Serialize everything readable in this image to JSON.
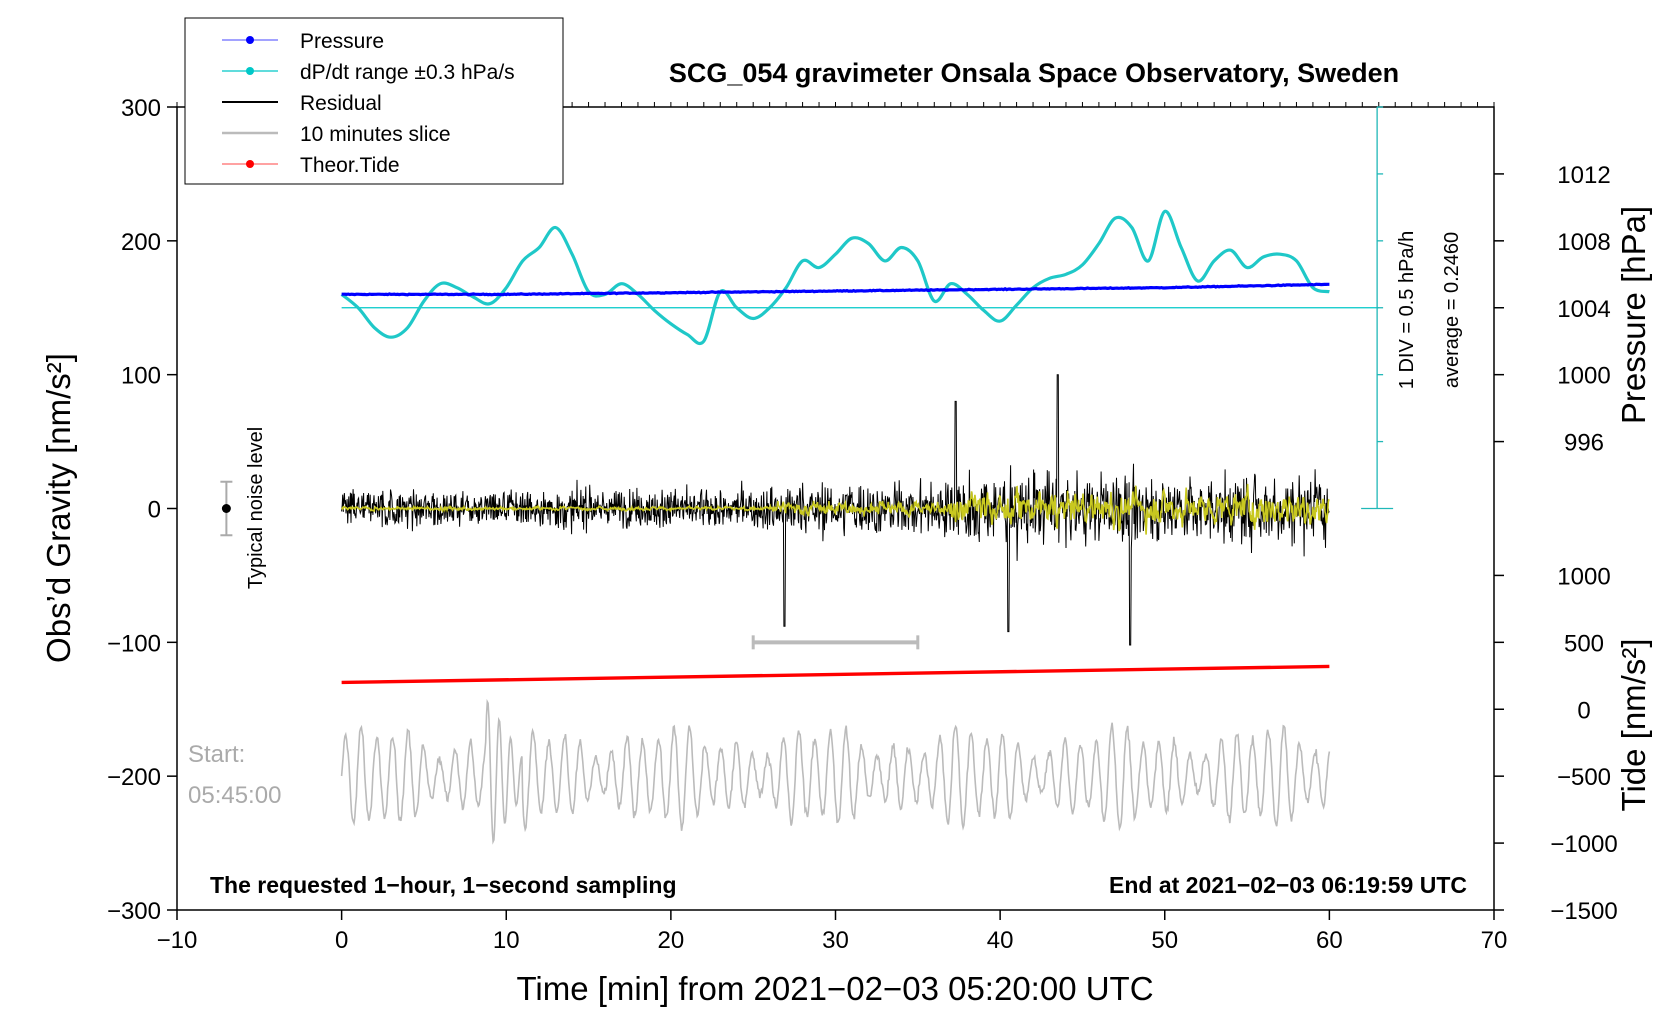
{
  "chart_data": {
    "type": "line",
    "title": "SCG_054 gravimeter Onsala Space Observatory, Sweden",
    "xlabel": "Time [min] from 2021−02−03 05:20:00 UTC",
    "ylabel_left": "Obs’d Gravity [nm/s²]",
    "ylabel_right_pressure": "Pressure [hPa]",
    "ylabel_right_tide": "Tide [nm/s²]",
    "xlim": [
      -10,
      70
    ],
    "ylim": [
      -300,
      300
    ],
    "x_ticks": [
      "−10",
      "0",
      "10",
      "20",
      "30",
      "40",
      "50",
      "60",
      "70"
    ],
    "y_ticks_left": [
      "300",
      "200",
      "100",
      "0",
      "−100",
      "−200",
      "−300"
    ],
    "y_ticks_pressure": [
      "1012",
      "1008",
      "1004",
      "1000",
      "996"
    ],
    "y_ticks_tide": [
      "1000",
      "500",
      "0",
      "−500",
      "−1000",
      "−1500"
    ],
    "legend": [
      {
        "label": "Pressure",
        "color": "#0000ff"
      },
      {
        "label": "dP/dt range ±0.3 hPa/s",
        "color": "#00c8c8"
      },
      {
        "label": "Residual",
        "color": "#000000"
      },
      {
        "label": "10 minutes slice",
        "color": "#bbbbbb"
      },
      {
        "label": "Theor.Tide",
        "color": "#ff0000"
      }
    ],
    "annotations": {
      "scale_div": "1 DIV = 0.5 hPa/h",
      "scale_avg": "average = 0.2460",
      "noise_label": "Typical noise level",
      "start_label": "Start:",
      "start_time": "05:45:00",
      "footer_left": "The requested 1−hour, 1−second sampling",
      "footer_right": "End at 2021−02−03 06:19:59 UTC"
    },
    "series": [
      {
        "name": "Pressure",
        "axis": "pressure_hPa",
        "x": [
          0,
          10,
          20,
          30,
          40,
          50,
          60
        ],
        "values": [
          1004.8,
          1004.8,
          1004.9,
          1005.0,
          1005.1,
          1005.2,
          1005.4
        ]
      },
      {
        "name": "dP/dt",
        "axis": "gravity_scale",
        "x": [
          0,
          1,
          2,
          3,
          4,
          5,
          6,
          7,
          8,
          9,
          10,
          11,
          12,
          13,
          14,
          15,
          16,
          17,
          18,
          19,
          20,
          21,
          22,
          23,
          24,
          25,
          26,
          27,
          28,
          29,
          30,
          31,
          32,
          33,
          34,
          35,
          36,
          37,
          38,
          39,
          40,
          41,
          42,
          43,
          44,
          45,
          46,
          47,
          48,
          49,
          50,
          51,
          52,
          53,
          54,
          55,
          56,
          57,
          58,
          59,
          60
        ],
        "values": [
          160,
          150,
          135,
          128,
          135,
          155,
          168,
          165,
          158,
          153,
          165,
          185,
          195,
          210,
          190,
          162,
          160,
          168,
          160,
          148,
          138,
          130,
          125,
          162,
          150,
          142,
          150,
          165,
          185,
          180,
          190,
          202,
          198,
          185,
          195,
          185,
          155,
          168,
          160,
          148,
          140,
          152,
          165,
          172,
          175,
          182,
          198,
          217,
          210,
          185,
          222,
          195,
          170,
          185,
          193,
          180,
          188,
          190,
          185,
          165,
          162
        ]
      },
      {
        "name": "Residual",
        "axis": "gravity",
        "x": [
          0,
          10,
          20,
          25,
          27,
          30,
          35,
          37,
          40,
          45,
          48,
          50,
          55,
          60
        ],
        "values": [
          0,
          0,
          0,
          0,
          -90,
          0,
          0,
          80,
          -90,
          100,
          -100,
          0,
          0,
          0
        ]
      },
      {
        "name": "Theor.Tide",
        "axis": "tide",
        "x": [
          0,
          60
        ],
        "values": [
          200,
          320
        ]
      }
    ],
    "slice_marker": {
      "x_range": [
        25,
        35
      ],
      "y": -100
    },
    "pressure_ref_line": {
      "y_hPa": 1004,
      "x_range": [
        0,
        63
      ]
    }
  }
}
